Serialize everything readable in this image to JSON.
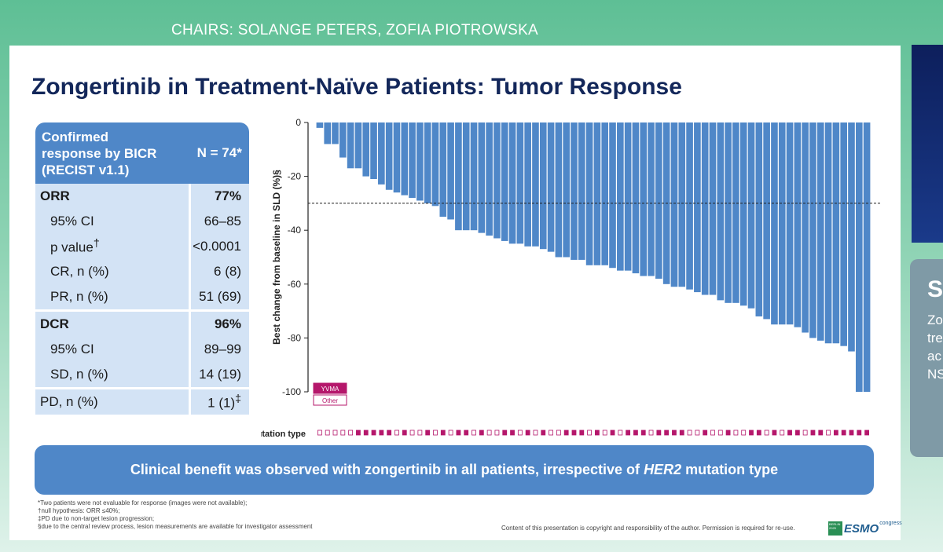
{
  "header": {
    "chairs": "CHAIRS: SOLANGE PETERS, ZOFIA PIOTROWSKA"
  },
  "side": {
    "big_letter": "S",
    "lines": [
      "Zo",
      "tre",
      "ac",
      "NS"
    ]
  },
  "slide": {
    "title": "Zongertinib in Treatment-Naïve Patients: Tumor Response",
    "table": {
      "header_left": [
        "Confirmed",
        "response by BICR",
        "(RECIST v1.1)"
      ],
      "header_right": "N = 74*",
      "rows": [
        {
          "label": "ORR",
          "value": "77%",
          "bold": true
        },
        {
          "label": "95% CI",
          "value": "66–85"
        },
        {
          "label": "p value",
          "sup": "†",
          "value": "<0.0001"
        },
        {
          "label": "CR, n (%)",
          "value": "6 (8)"
        },
        {
          "label": "PR, n (%)",
          "value": "51 (69)"
        },
        {
          "label": "DCR",
          "value": "96%",
          "bold": true
        },
        {
          "label": "95% CI",
          "value": "89–99"
        },
        {
          "label": "SD, n (%)",
          "value": "14 (19)"
        },
        {
          "label": "PD, n (%)",
          "value": "1 (1)",
          "sup": "‡"
        }
      ]
    },
    "banner": {
      "text_before": "Clinical benefit was observed with zongertinib in all patients, irrespective of ",
      "italic": "HER2",
      "text_after": " mutation type"
    },
    "footnotes": [
      "*Two patients were not evaluable for response (images were not available);",
      "†null hypothesis: ORR ≤40%;",
      "‡PD due to non-target lesion progression;",
      "§due to the central review process, lesion measurements are available for investigator assessment"
    ],
    "copyright": "Content of this presentation is copyright and responsibility of the author. Permission is required for re-use.",
    "logo": {
      "box_text": "BERLIN 2025",
      "word": "ESMO",
      "sub": "congress"
    }
  },
  "chart_data": {
    "type": "bar",
    "title": "",
    "ylabel": "Best change from baseline in SLD (%)§",
    "xlabel": "",
    "ylim": [
      -100,
      0
    ],
    "yticks": [
      0,
      -20,
      -40,
      -60,
      -80,
      -100
    ],
    "reference_line": -30,
    "legend": [
      {
        "label": "YVMA",
        "color": "#b5176b"
      },
      {
        "label": "Other",
        "color": "#ffffff"
      }
    ],
    "mutation_label": "Mutation type",
    "values": [
      -2,
      -8,
      -8,
      -13,
      -17,
      -17,
      -20,
      -21,
      -23,
      -25,
      -26,
      -27,
      -28,
      -29,
      -30,
      -31,
      -35,
      -36,
      -40,
      -40,
      -40,
      -41,
      -42,
      -43,
      -44,
      -45,
      -45,
      -46,
      -46,
      -47,
      -48,
      -50,
      -50,
      -51,
      -51,
      -53,
      -53,
      -53,
      -54,
      -55,
      -55,
      -56,
      -57,
      -57,
      -58,
      -60,
      -61,
      -61,
      -62,
      -63,
      -64,
      -64,
      -66,
      -67,
      -67,
      -68,
      -69,
      -72,
      -73,
      -75,
      -75,
      -75,
      -76,
      -78,
      -80,
      -81,
      -82,
      -82,
      -83,
      -85,
      -100,
      -100
    ],
    "mutation": [
      "O",
      "O",
      "O",
      "O",
      "O",
      "Y",
      "Y",
      "Y",
      "Y",
      "Y",
      "O",
      "Y",
      "O",
      "O",
      "Y",
      "O",
      "Y",
      "O",
      "Y",
      "Y",
      "O",
      "Y",
      "O",
      "O",
      "Y",
      "Y",
      "O",
      "Y",
      "O",
      "Y",
      "O",
      "O",
      "Y",
      "Y",
      "Y",
      "O",
      "Y",
      "O",
      "Y",
      "O",
      "Y",
      "Y",
      "Y",
      "O",
      "Y",
      "Y",
      "Y",
      "Y",
      "O",
      "O",
      "Y",
      "O",
      "O",
      "Y",
      "O",
      "O",
      "Y",
      "Y",
      "O",
      "Y",
      "O",
      "Y",
      "Y",
      "O",
      "Y",
      "Y",
      "O",
      "Y",
      "Y",
      "Y",
      "Y",
      "Y"
    ],
    "color": "#4f87c8"
  }
}
